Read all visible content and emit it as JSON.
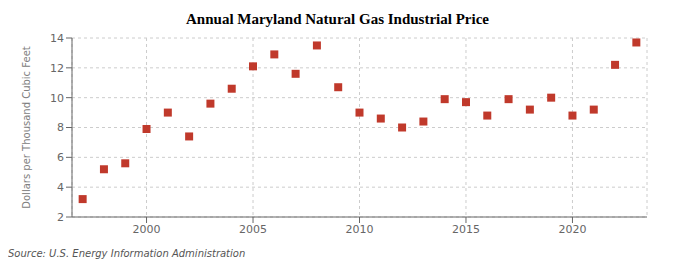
{
  "chart_data": {
    "type": "scatter",
    "title": "Annual Maryland Natural Gas Industrial Price",
    "ylabel": "Dollars per Thousand Cubic Feet",
    "source": "Source: U.S. Energy Information Administration",
    "x": [
      1997,
      1998,
      1999,
      2000,
      2001,
      2002,
      2003,
      2004,
      2005,
      2006,
      2007,
      2008,
      2009,
      2010,
      2011,
      2012,
      2013,
      2014,
      2015,
      2016,
      2017,
      2018,
      2019,
      2020,
      2021,
      2022,
      2023
    ],
    "values": [
      3.2,
      5.2,
      5.6,
      7.9,
      9.0,
      7.4,
      9.6,
      10.6,
      12.1,
      12.9,
      11.6,
      13.5,
      10.7,
      9.0,
      8.6,
      8.0,
      8.4,
      9.9,
      9.7,
      8.8,
      9.9,
      9.2,
      10.0,
      8.8,
      9.2,
      12.2,
      13.7
    ],
    "color": "#c0392b",
    "marker": "square",
    "grid": true,
    "xlim": [
      1996.5,
      2023.5
    ],
    "xticks": [
      2000,
      2005,
      2010,
      2015,
      2020
    ],
    "ylim": [
      2,
      14
    ],
    "yticks": [
      2,
      4,
      6,
      8,
      10,
      12,
      14
    ]
  }
}
